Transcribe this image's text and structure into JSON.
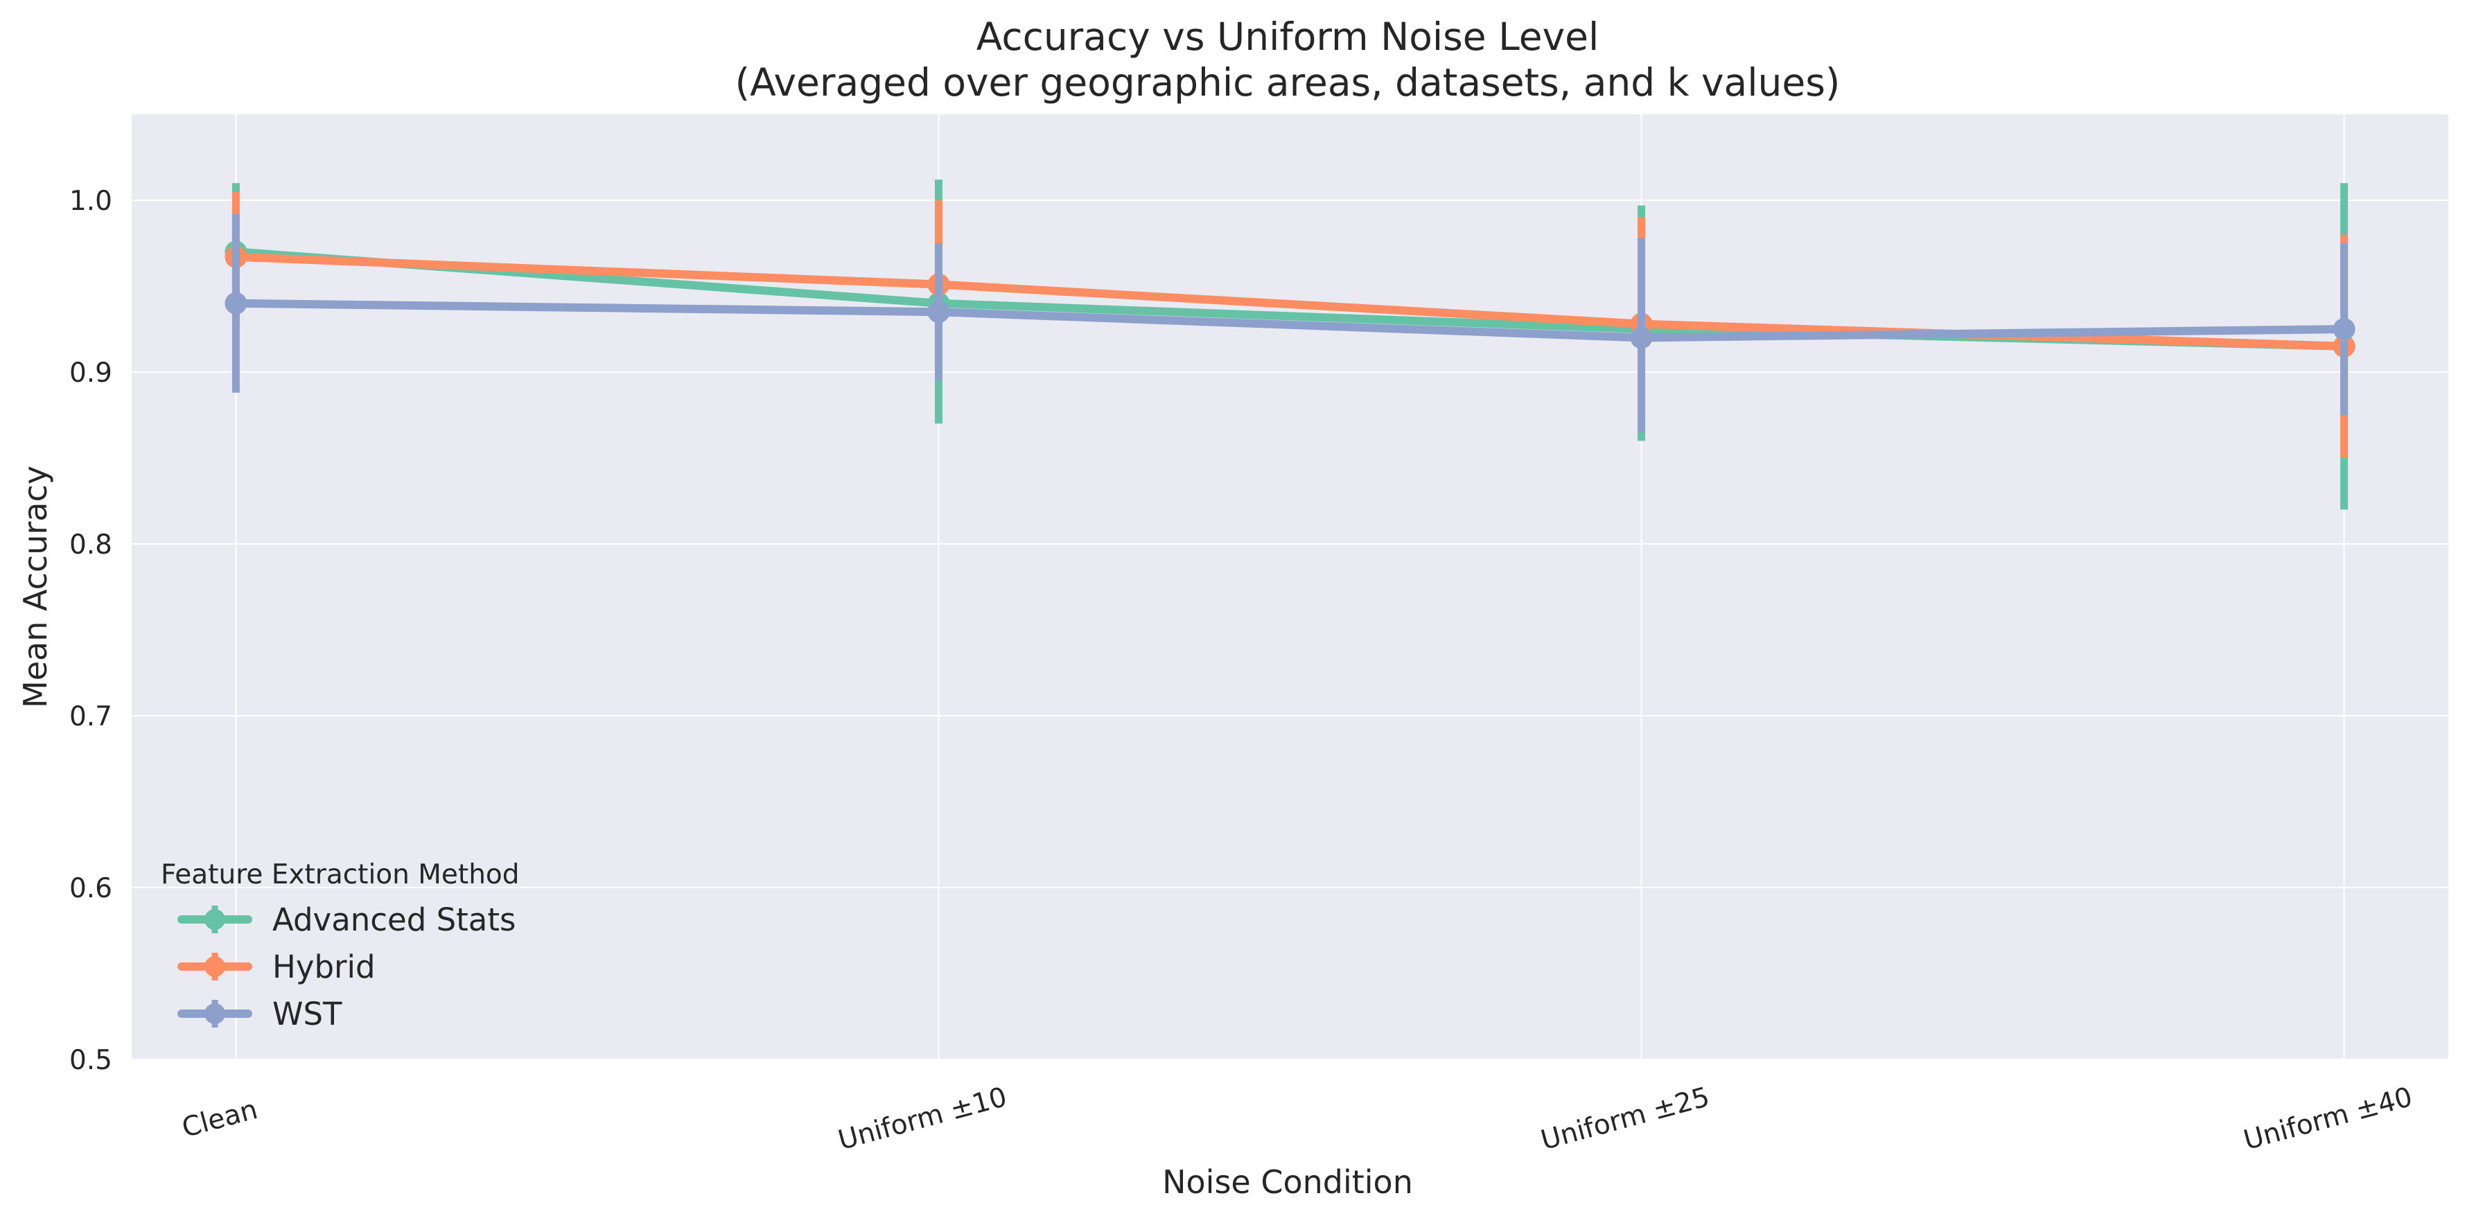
{
  "chart_data": {
    "type": "line",
    "title": "Accuracy vs Uniform Noise Level",
    "subtitle": "(Averaged over geographic areas, datasets, and k values)",
    "xlabel": "Noise Condition",
    "ylabel": "Mean Accuracy",
    "categories": [
      "Clean",
      "Uniform ±10",
      "Uniform ±25",
      "Uniform ±40"
    ],
    "ylim": [
      0.5,
      1.05
    ],
    "yticks": [
      0.5,
      0.6,
      0.7,
      0.8,
      0.9,
      1.0
    ],
    "ytick_labels": [
      "0.5",
      "0.6",
      "0.7",
      "0.8",
      "0.9",
      "1.0"
    ],
    "grid": true,
    "legend": {
      "title": "Feature Extraction Method",
      "placement": "lower-left"
    },
    "background_color": "#eaeaf2",
    "grid_color": "#ffffff",
    "series": [
      {
        "name": "Advanced Stats",
        "color": "#66c2a5",
        "values": [
          0.97,
          0.94,
          0.925,
          0.915
        ],
        "err_low": [
          0.935,
          0.87,
          0.86,
          0.82
        ],
        "err_high": [
          1.01,
          1.012,
          0.997,
          1.01
        ]
      },
      {
        "name": "Hybrid",
        "color": "#fc8d62",
        "values": [
          0.967,
          0.951,
          0.928,
          0.915
        ],
        "err_low": [
          0.93,
          0.9,
          0.87,
          0.85
        ],
        "err_high": [
          1.005,
          1.0,
          0.99,
          0.98
        ]
      },
      {
        "name": "WST",
        "color": "#8da0cb",
        "values": [
          0.94,
          0.935,
          0.92,
          0.925
        ],
        "err_low": [
          0.888,
          0.895,
          0.865,
          0.875
        ],
        "err_high": [
          0.992,
          0.975,
          0.978,
          0.975
        ]
      }
    ]
  }
}
